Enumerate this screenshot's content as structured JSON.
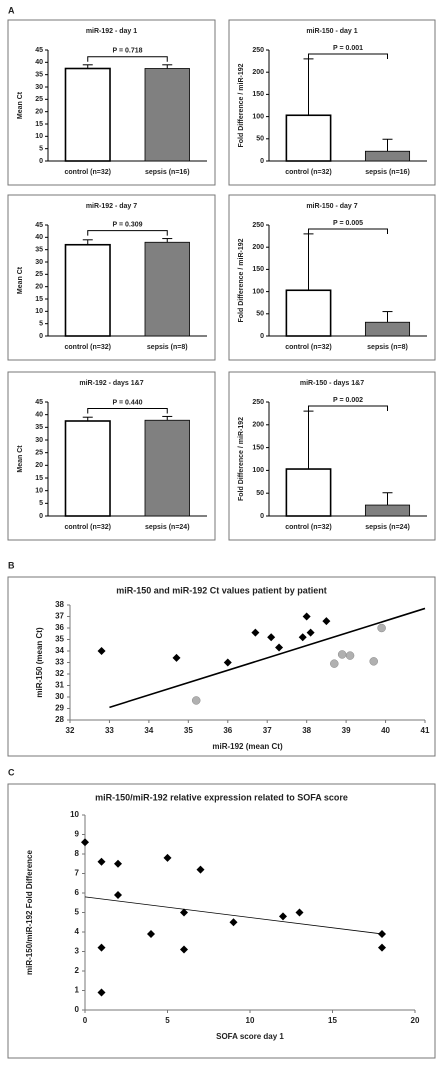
{
  "panel_labels": [
    "A",
    "B",
    "C"
  ],
  "chart_data": [
    {
      "type": "bar",
      "title": "miR-192 - day 1",
      "ylabel": "Mean Ct",
      "categories": [
        "control (n=32)",
        "sepsis (n=16)"
      ],
      "values": [
        37.5,
        37.5
      ],
      "errors": [
        1.5,
        1.5
      ],
      "colors": [
        "#ffffff",
        "#808080"
      ],
      "ylim": [
        0,
        45
      ],
      "yticks": [
        0,
        5,
        10,
        15,
        20,
        25,
        30,
        35,
        40,
        45
      ],
      "annotation": "P = 0.718"
    },
    {
      "type": "bar",
      "title": "miR-150 - day 1",
      "ylabel": "Fold Difference / miR-192",
      "categories": [
        "control (n=32)",
        "sepsis (n=16)"
      ],
      "values": [
        103,
        22
      ],
      "errors": [
        127,
        27
      ],
      "colors": [
        "#ffffff",
        "#808080"
      ],
      "ylim": [
        0,
        250
      ],
      "yticks": [
        0,
        50,
        100,
        150,
        200,
        250
      ],
      "annotation": "P = 0.001"
    },
    {
      "type": "bar",
      "title": "miR-192 - day 7",
      "ylabel": "Mean Ct",
      "categories": [
        "control (n=32)",
        "sepsis (n=8)"
      ],
      "values": [
        37,
        38
      ],
      "errors": [
        2,
        1.5
      ],
      "colors": [
        "#ffffff",
        "#808080"
      ],
      "ylim": [
        0,
        45
      ],
      "yticks": [
        0,
        5,
        10,
        15,
        20,
        25,
        30,
        35,
        40,
        45
      ],
      "annotation": "P = 0.309"
    },
    {
      "type": "bar",
      "title": "miR-150 - day 7",
      "ylabel": "Fold Difference / miR-192",
      "categories": [
        "control (n=32)",
        "sepsis (n=8)"
      ],
      "values": [
        103,
        31
      ],
      "errors": [
        127,
        24
      ],
      "colors": [
        "#ffffff",
        "#808080"
      ],
      "ylim": [
        0,
        250
      ],
      "yticks": [
        0,
        50,
        100,
        150,
        200,
        250
      ],
      "annotation": "P = 0.005"
    },
    {
      "type": "bar",
      "title": "miR-192 - days 1&7",
      "ylabel": "Mean Ct",
      "categories": [
        "control (n=32)",
        "sepsis (n=24)"
      ],
      "values": [
        37.5,
        37.8
      ],
      "errors": [
        1.5,
        1.5
      ],
      "colors": [
        "#ffffff",
        "#808080"
      ],
      "ylim": [
        0,
        45
      ],
      "yticks": [
        0,
        5,
        10,
        15,
        20,
        25,
        30,
        35,
        40,
        45
      ],
      "annotation": "P = 0.440"
    },
    {
      "type": "bar",
      "title": "miR-150 - days 1&7",
      "ylabel": "Fold Difference / miR-192",
      "categories": [
        "control (n=32)",
        "sepsis (n=24)"
      ],
      "values": [
        103,
        24
      ],
      "errors": [
        127,
        27
      ],
      "colors": [
        "#ffffff",
        "#808080"
      ],
      "ylim": [
        0,
        250
      ],
      "yticks": [
        0,
        50,
        100,
        150,
        200,
        250
      ],
      "annotation": "P = 0.002"
    },
    {
      "type": "scatter",
      "title": "miR-150 and miR-192 Ct values patient by patient",
      "xlabel": "miR-192 (mean Ct)",
      "ylabel": "miR-150 (mean Ct)",
      "xlim": [
        32,
        41
      ],
      "xticks": [
        32,
        33,
        34,
        35,
        36,
        37,
        38,
        39,
        40,
        41
      ],
      "ylim": [
        28,
        38
      ],
      "yticks": [
        28,
        29,
        30,
        31,
        32,
        33,
        34,
        35,
        36,
        37,
        38
      ],
      "series": [
        {
          "marker": "diamond",
          "color": "#000000",
          "x": [
            32.8,
            34.7,
            36.0,
            36.7,
            37.1,
            37.3,
            37.9,
            38.0,
            38.1,
            38.5
          ],
          "y": [
            34.0,
            33.4,
            33.0,
            35.6,
            35.2,
            34.3,
            35.2,
            37.0,
            35.6,
            36.6
          ]
        },
        {
          "marker": "circle",
          "color": "#b0b0b0",
          "x": [
            35.2,
            38.7,
            38.9,
            39.1,
            39.7,
            39.9
          ],
          "y": [
            29.7,
            32.9,
            33.7,
            33.6,
            33.1,
            36.0
          ]
        }
      ],
      "trendline": {
        "x": [
          33,
          41
        ],
        "y": [
          29.1,
          37.7
        ]
      }
    },
    {
      "type": "scatter",
      "title": "miR-150/miR-192 relative expression related to SOFA score",
      "xlabel": "SOFA score day 1",
      "ylabel": "miR-150/miR-192 Fold Difference",
      "xlim": [
        0,
        20
      ],
      "xticks": [
        0,
        5,
        10,
        15,
        20
      ],
      "ylim": [
        0,
        10
      ],
      "yticks": [
        0,
        1,
        2,
        3,
        4,
        5,
        6,
        7,
        8,
        9,
        10
      ],
      "series": [
        {
          "marker": "diamond",
          "color": "#000000",
          "x": [
            0,
            1,
            1,
            1,
            2,
            2,
            4,
            5,
            6,
            6,
            7,
            9,
            12,
            13,
            18,
            18
          ],
          "y": [
            8.6,
            7.6,
            3.2,
            0.9,
            7.5,
            5.9,
            3.9,
            7.8,
            5.0,
            3.1,
            7.2,
            4.5,
            4.8,
            5.0,
            3.9,
            3.2
          ]
        }
      ],
      "trendline": {
        "x": [
          0,
          18
        ],
        "y": [
          5.8,
          3.9
        ]
      }
    }
  ]
}
